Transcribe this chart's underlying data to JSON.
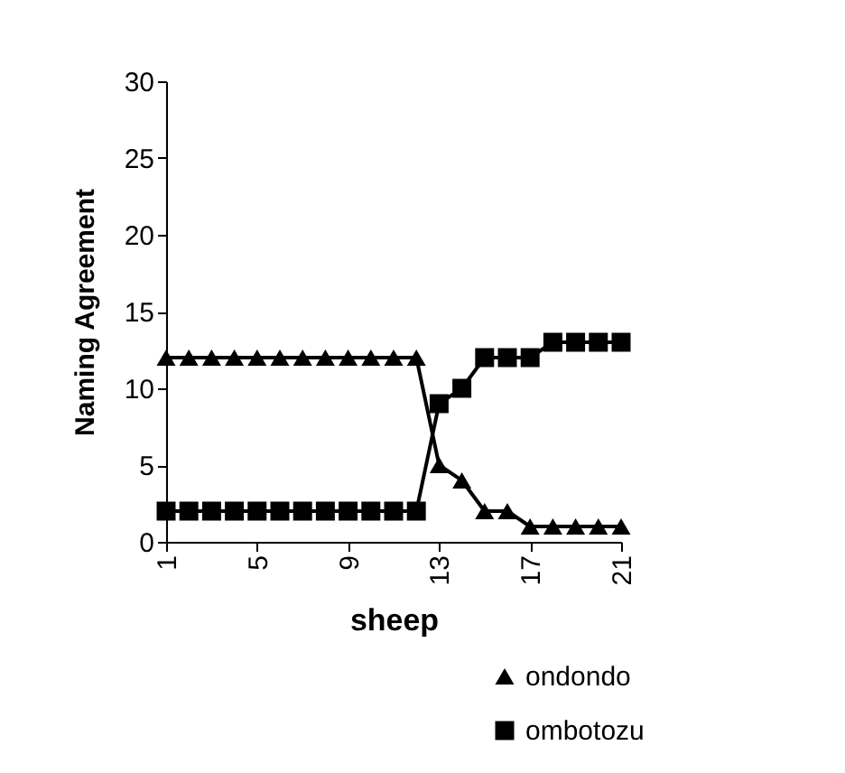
{
  "chart_data": {
    "type": "line",
    "xlabel": "sheep",
    "ylabel": "Naming Agreement",
    "x": [
      1,
      2,
      3,
      4,
      5,
      6,
      7,
      8,
      9,
      10,
      11,
      12,
      13,
      14,
      15,
      16,
      17,
      18,
      19,
      20,
      21
    ],
    "series": [
      {
        "name": "ondondo",
        "color": "#000000",
        "marker": "triangle",
        "values": [
          12,
          12,
          12,
          12,
          12,
          12,
          12,
          12,
          12,
          12,
          12,
          12,
          5,
          4,
          2,
          2,
          1,
          1,
          1,
          1,
          1
        ]
      },
      {
        "name": "ombotozu",
        "color": "#000000",
        "marker": "square",
        "values": [
          2,
          2,
          2,
          2,
          2,
          2,
          2,
          2,
          2,
          2,
          2,
          2,
          9,
          10,
          12,
          12,
          12,
          13,
          13,
          13,
          13
        ]
      }
    ],
    "xlim": [
      1,
      21
    ],
    "xticks": [
      1,
      5,
      9,
      13,
      17,
      21
    ],
    "ylim": [
      0,
      30
    ],
    "yticks": [
      0,
      5,
      10,
      15,
      20,
      25,
      30
    ],
    "grid": false,
    "legend": "bottom right"
  }
}
